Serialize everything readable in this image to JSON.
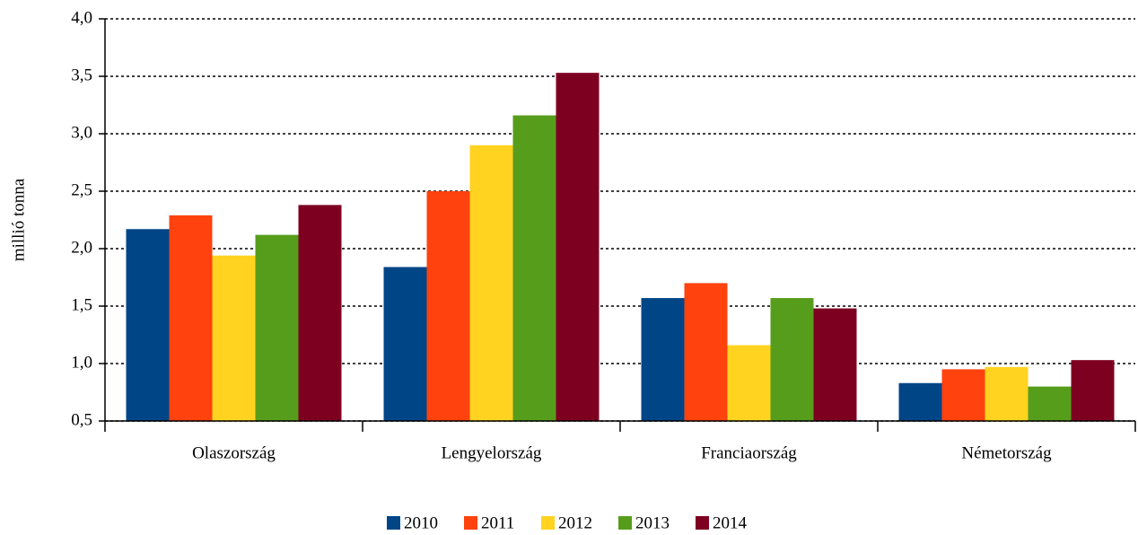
{
  "chart_data": {
    "type": "bar",
    "y_label": "millió tonna",
    "categories": [
      "Olaszország",
      "Lengyelország",
      "Franciaország",
      "Németország"
    ],
    "series": [
      {
        "name": "2010",
        "color": "#004586",
        "values": [
          2.17,
          1.84,
          1.57,
          0.83
        ]
      },
      {
        "name": "2011",
        "color": "#ff420e",
        "values": [
          2.29,
          2.5,
          1.7,
          0.95
        ]
      },
      {
        "name": "2012",
        "color": "#ffd320",
        "values": [
          1.94,
          2.9,
          1.16,
          0.97
        ]
      },
      {
        "name": "2013",
        "color": "#579d1c",
        "values": [
          2.12,
          3.16,
          1.57,
          0.8
        ]
      },
      {
        "name": "2014",
        "color": "#7e0021",
        "values": [
          2.38,
          3.53,
          1.48,
          1.03
        ]
      }
    ],
    "ylim": [
      0.5,
      4.0
    ],
    "yticks": [
      {
        "value": 0.5,
        "label": "0,5"
      },
      {
        "value": 1.0,
        "label": "1,0"
      },
      {
        "value": 1.5,
        "label": "1,5"
      },
      {
        "value": 2.0,
        "label": "2,0"
      },
      {
        "value": 2.5,
        "label": "2,5"
      },
      {
        "value": 3.0,
        "label": "3,0"
      },
      {
        "value": 3.5,
        "label": "3,5"
      },
      {
        "value": 4.0,
        "label": "4,0"
      }
    ],
    "grid": true,
    "legend": "bottom"
  }
}
